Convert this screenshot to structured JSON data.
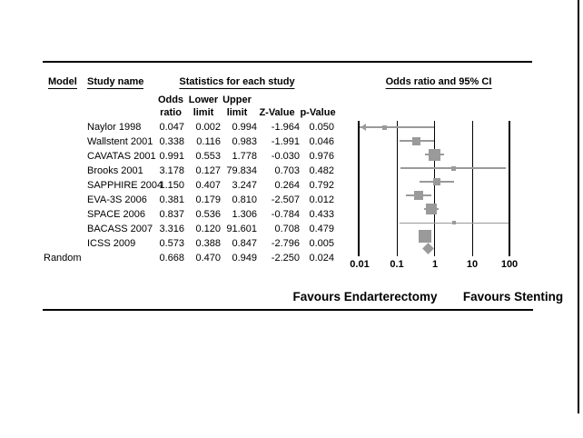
{
  "figure": {
    "headers": {
      "model": "Model",
      "study": "Study name",
      "stats": "Statistics for each study",
      "plot": "Odds ratio and 95% CI"
    },
    "subheaders": {
      "odds1": "Odds",
      "odds2": "ratio",
      "lower1": "Lower",
      "lower2": "limit",
      "upper1": "Upper",
      "upper2": "limit",
      "z": "Z-Value",
      "p": "p-Value"
    },
    "rows": [
      {
        "name": "Naylor 1998",
        "or": "0.047",
        "lower": "0.002",
        "upper": "0.994",
        "z": "-1.964",
        "p": "0.050"
      },
      {
        "name": "Wallstent 2001",
        "or": "0.338",
        "lower": "0.116",
        "upper": "0.983",
        "z": "-1.991",
        "p": "0.046"
      },
      {
        "name": "CAVATAS 2001",
        "or": "0.991",
        "lower": "0.553",
        "upper": "1.778",
        "z": "-0.030",
        "p": "0.976"
      },
      {
        "name": "Brooks 2001",
        "or": "3.178",
        "lower": "0.127",
        "upper": "79.834",
        "z": "0.703",
        "p": "0.482"
      },
      {
        "name": "SAPPHIRE 2004",
        "or": "1.150",
        "lower": "0.407",
        "upper": "3.247",
        "z": "0.264",
        "p": "0.792"
      },
      {
        "name": "EVA-3S 2006",
        "or": "0.381",
        "lower": "0.179",
        "upper": "0.810",
        "z": "-2.507",
        "p": "0.012"
      },
      {
        "name": "SPACE 2006",
        "or": "0.837",
        "lower": "0.536",
        "upper": "1.306",
        "z": "-0.784",
        "p": "0.433"
      },
      {
        "name": "BACASS 2007",
        "or": "3.316",
        "lower": "0.120",
        "upper": "91.601",
        "z": "0.708",
        "p": "0.479"
      },
      {
        "name": "ICSS 2009",
        "or": "0.573",
        "lower": "0.388",
        "upper": "0.847",
        "z": "-2.796",
        "p": "0.005"
      }
    ],
    "summary": {
      "model": "Random",
      "or": "0.668",
      "lower": "0.470",
      "upper": "0.949",
      "z": "-2.250",
      "p": "0.024"
    },
    "axis_ticks": [
      "0.01",
      "0.1",
      "1",
      "10",
      "100"
    ],
    "footer": {
      "left": "Favours Endarterectomy",
      "right": "Favours Stenting"
    }
  },
  "colors": {
    "marker_gray": "#9a9a9a",
    "rule_black": "#000000",
    "background": "#ffffff"
  },
  "chart_data": {
    "type": "scatter",
    "subtype": "forest_plot",
    "title": "Odds ratio and 95% CI",
    "x_scale": "log10",
    "xlim": [
      0.01,
      100
    ],
    "x_ticks": [
      0.01,
      0.1,
      1,
      10,
      100
    ],
    "grid": "vertical-lines-at-decades",
    "legend_position": "none",
    "studies": [
      {
        "name": "Naylor 1998",
        "or": 0.047,
        "lower": 0.002,
        "upper": 0.994,
        "z": -1.964,
        "p": 0.05,
        "marker_px": 5
      },
      {
        "name": "Wallstent 2001",
        "or": 0.338,
        "lower": 0.116,
        "upper": 0.983,
        "z": -1.991,
        "p": 0.046,
        "marker_px": 9
      },
      {
        "name": "CAVATAS 2001",
        "or": 0.991,
        "lower": 0.553,
        "upper": 1.778,
        "z": -0.03,
        "p": 0.976,
        "marker_px": 13
      },
      {
        "name": "Brooks 2001",
        "or": 3.178,
        "lower": 0.127,
        "upper": 79.834,
        "z": 0.703,
        "p": 0.482,
        "marker_px": 5
      },
      {
        "name": "SAPPHIRE 2004",
        "or": 1.15,
        "lower": 0.407,
        "upper": 3.247,
        "z": 0.264,
        "p": 0.792,
        "marker_px": 8
      },
      {
        "name": "EVA-3S 2006",
        "or": 0.381,
        "lower": 0.179,
        "upper": 0.81,
        "z": -2.507,
        "p": 0.012,
        "marker_px": 10
      },
      {
        "name": "SPACE 2006",
        "or": 0.837,
        "lower": 0.536,
        "upper": 1.306,
        "z": -0.784,
        "p": 0.433,
        "marker_px": 12
      },
      {
        "name": "BACASS 2007",
        "or": 3.316,
        "lower": 0.12,
        "upper": 91.601,
        "z": 0.708,
        "p": 0.479,
        "marker_px": 4
      },
      {
        "name": "ICSS 2009",
        "or": 0.573,
        "lower": 0.388,
        "upper": 0.847,
        "z": -2.796,
        "p": 0.005,
        "marker_px": 14
      }
    ],
    "summary": {
      "model": "Random",
      "or": 0.668,
      "lower": 0.47,
      "upper": 0.949,
      "z": -2.25,
      "p": 0.024
    },
    "footer_labels": [
      "Favours Endarterectomy",
      "Favours Stenting"
    ]
  }
}
